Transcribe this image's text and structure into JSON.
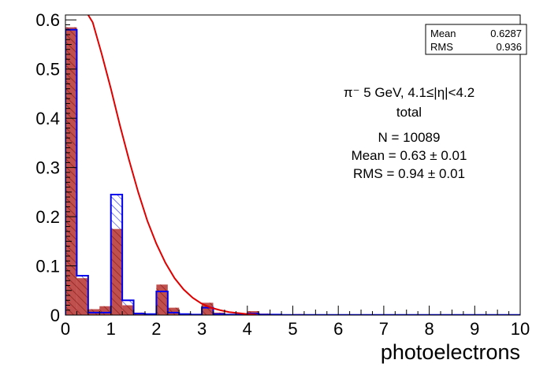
{
  "chart_data": {
    "type": "bar",
    "xlabel": "photoelectrons",
    "ylabel": "",
    "xlim": [
      0,
      10
    ],
    "ylim": [
      0,
      0.61
    ],
    "bin_width": 0.25,
    "x_ticks": [
      "0",
      "1",
      "2",
      "3",
      "4",
      "5",
      "6",
      "7",
      "8",
      "9",
      "10"
    ],
    "y_ticks": [
      "0",
      "0.1",
      "0.2",
      "0.3",
      "0.4",
      "0.5",
      "0.6"
    ],
    "y_tick_values": [
      0,
      0.1,
      0.2,
      0.3,
      0.4,
      0.5,
      0.6
    ],
    "stats_box": {
      "mean_label": "Mean",
      "mean_value": "0.6287",
      "rms_label": "RMS",
      "rms_value": "0.936"
    },
    "annotation": {
      "line1": "π⁻ 5 GeV, 4.1≤|η|<4.2",
      "line2": "total",
      "line3": "N = 10089",
      "line4": "Mean = 0.63  ± 0.01",
      "line5": "RMS = 0.94  ± 0.01"
    },
    "colors": {
      "filled": "#c0504d",
      "hatch": "#8a1c1c",
      "outline": "#0000ee",
      "curve": "#e00000"
    },
    "series": [
      {
        "style": "filled-hatched",
        "values": [
          0.585,
          0.075,
          0.012,
          0.018,
          0.175,
          0.02,
          0.005,
          0.003,
          0.062,
          0.015,
          0.003,
          0.002,
          0.025,
          0.005,
          0.002,
          0.002,
          0.008,
          0.003,
          0.002,
          0.001,
          0.002,
          0.001,
          0.001,
          0.001,
          0.001,
          0.001,
          0.001,
          0.001,
          0.001,
          0.0005,
          0.0005,
          0.0005,
          0.0005,
          0.0005,
          0.0005,
          0.0005,
          0.0005,
          0.0005,
          0.0005,
          0.0005
        ]
      },
      {
        "style": "outline",
        "values": [
          0.58,
          0.08,
          0.005,
          0.005,
          0.245,
          0.03,
          0.003,
          0.002,
          0.048,
          0.005,
          0.002,
          0.001,
          0.015,
          0.002,
          0.001,
          0.001,
          0.003,
          0.001,
          0.001,
          0.0005,
          0.0005,
          0.0005,
          0.0005,
          0.0005,
          0.0005,
          0.0005,
          0.0005,
          0.0005,
          0.0005,
          0.0005,
          0.0005,
          0.0005,
          0.0005,
          0.0005,
          0.0005,
          0.0005,
          0.0005,
          0.0005,
          0.0005,
          0.0005
        ]
      },
      {
        "style": "curve",
        "x": [
          0.5,
          0.6,
          0.8,
          1.0,
          1.2,
          1.4,
          1.6,
          1.8,
          2.0,
          2.2,
          2.4,
          2.6,
          2.8,
          3.0,
          3.2,
          3.4,
          3.6,
          3.8,
          4.0,
          4.2
        ],
        "y": [
          0.61,
          0.595,
          0.53,
          0.46,
          0.385,
          0.315,
          0.25,
          0.192,
          0.145,
          0.106,
          0.075,
          0.052,
          0.035,
          0.023,
          0.015,
          0.01,
          0.006,
          0.004,
          0.002,
          0.001
        ]
      }
    ]
  }
}
